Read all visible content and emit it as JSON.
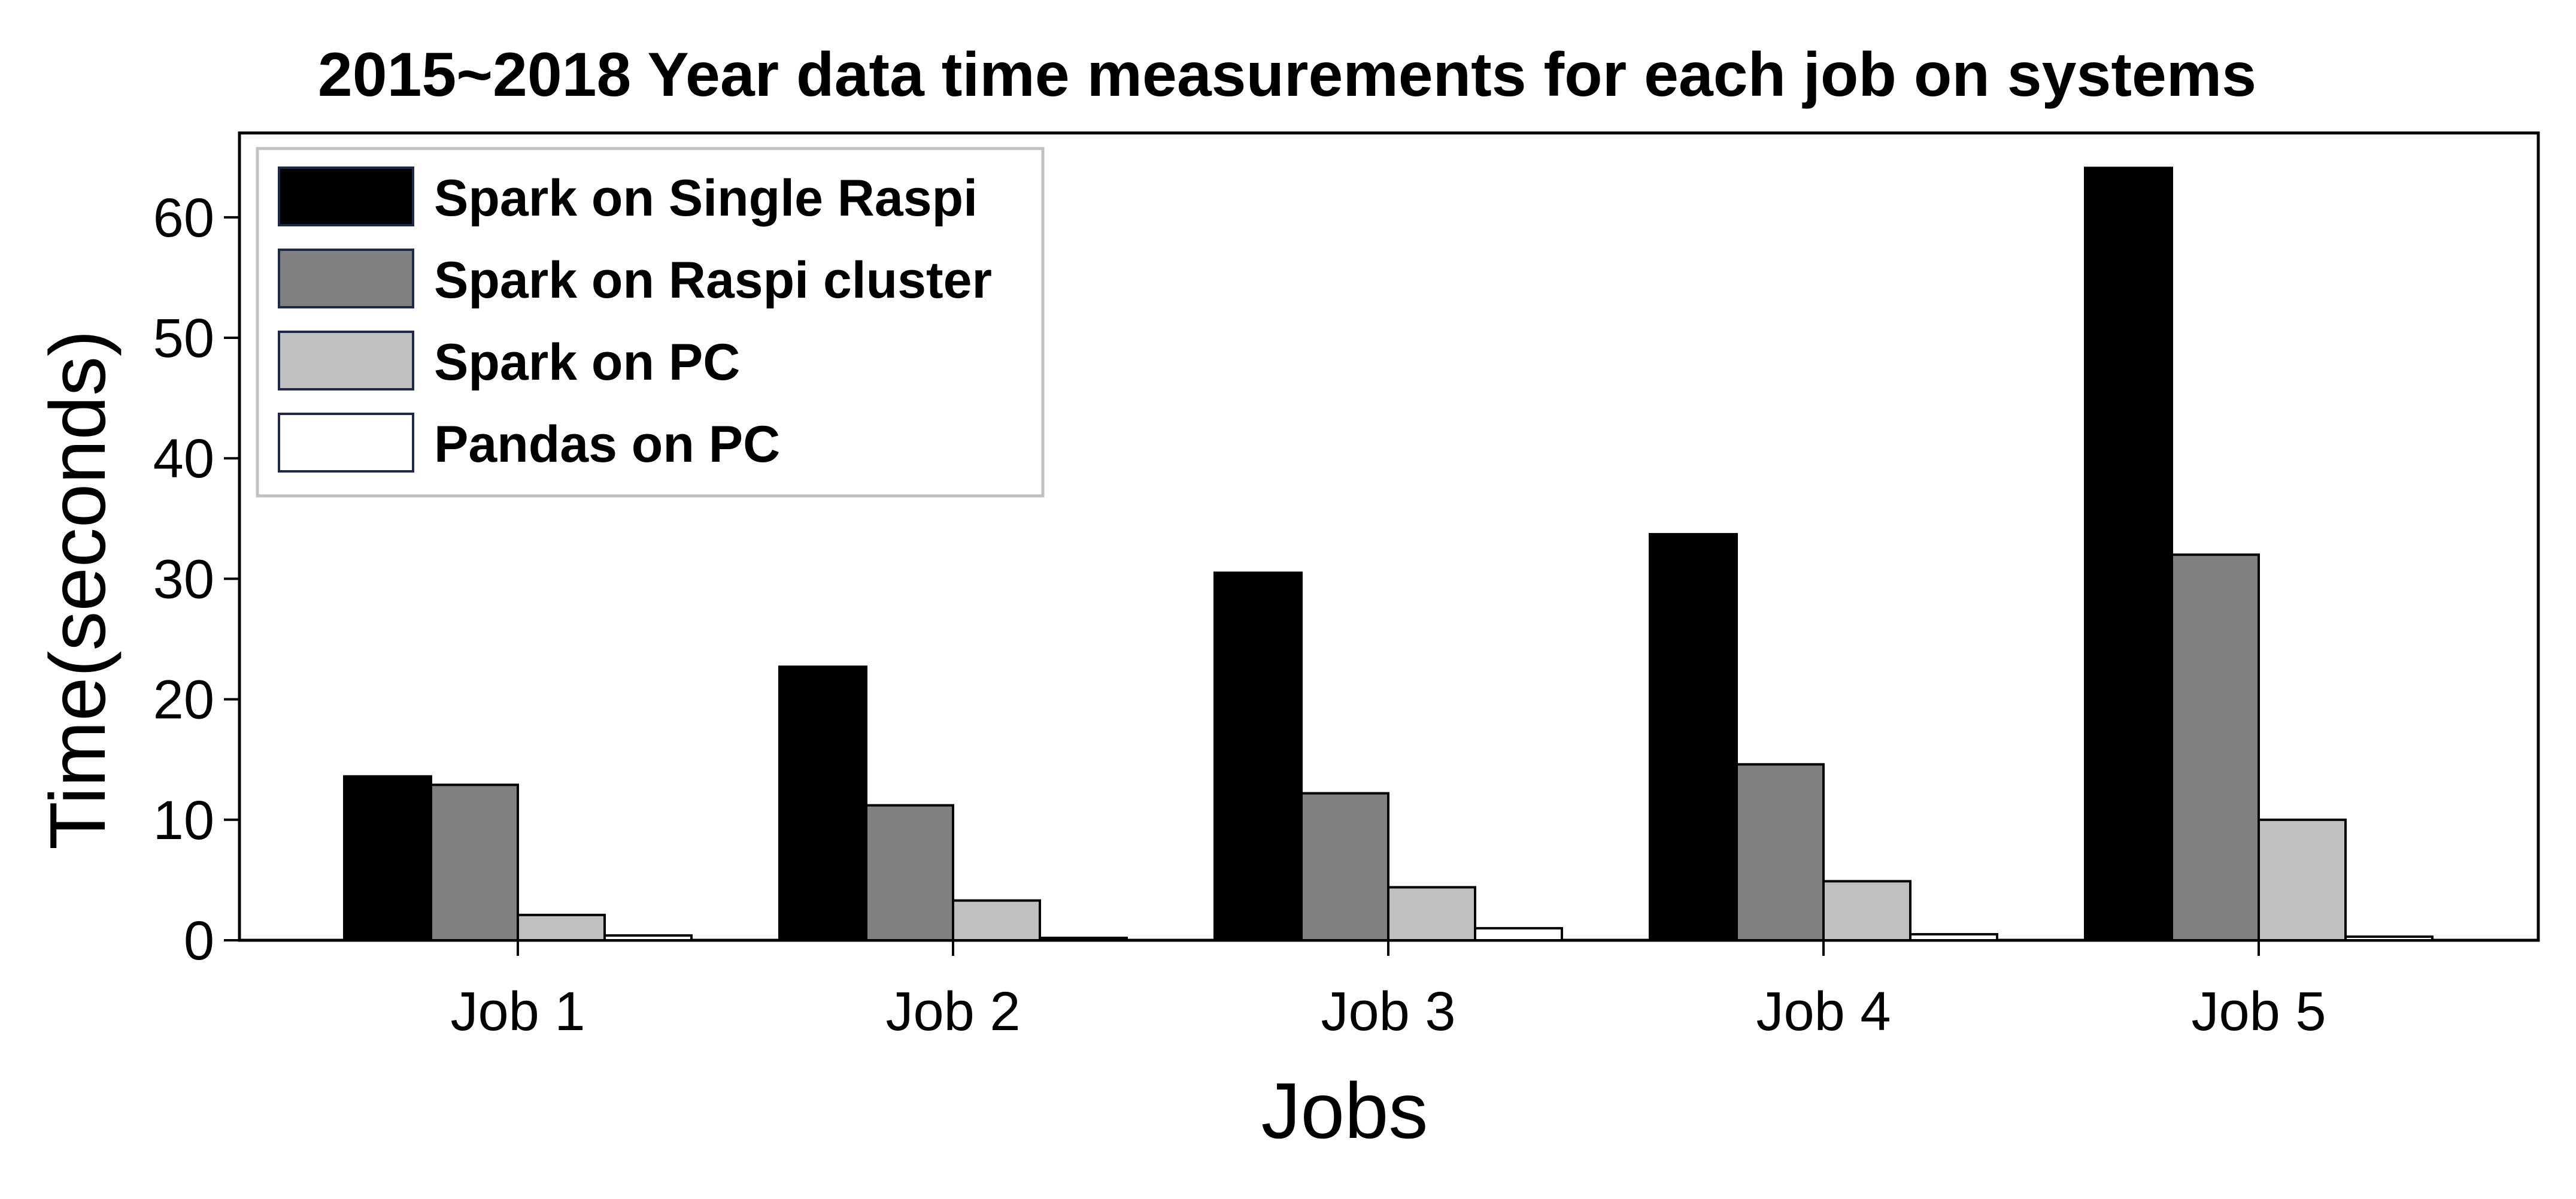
{
  "chart_data": {
    "type": "bar",
    "title": "2015~2018 Year data time measurements for each job on systems",
    "xlabel": "Jobs",
    "ylabel": "Time(seconds)",
    "categories": [
      "Job 1",
      "Job 2",
      "Job 3",
      "Job 4",
      "Job 5"
    ],
    "ylim": [
      0,
      67
    ],
    "yticks": [
      0,
      10,
      20,
      30,
      40,
      50,
      60
    ],
    "grid": false,
    "legend_position": "top-left",
    "series": [
      {
        "name": "Spark on Single Raspi",
        "color": "#000000",
        "values": [
          13.6,
          22.7,
          30.5,
          33.7,
          64.1
        ]
      },
      {
        "name": "Spark on Raspi cluster",
        "color": "#808080",
        "values": [
          12.9,
          11.2,
          12.2,
          14.6,
          32.0
        ]
      },
      {
        "name": "Spark on PC",
        "color": "#c0c0c0",
        "values": [
          2.1,
          3.3,
          4.4,
          4.9,
          10.0
        ]
      },
      {
        "name": "Pandas on PC",
        "color": "#ffffff",
        "values": [
          0.4,
          0.2,
          1.0,
          0.5,
          0.3
        ]
      }
    ]
  }
}
